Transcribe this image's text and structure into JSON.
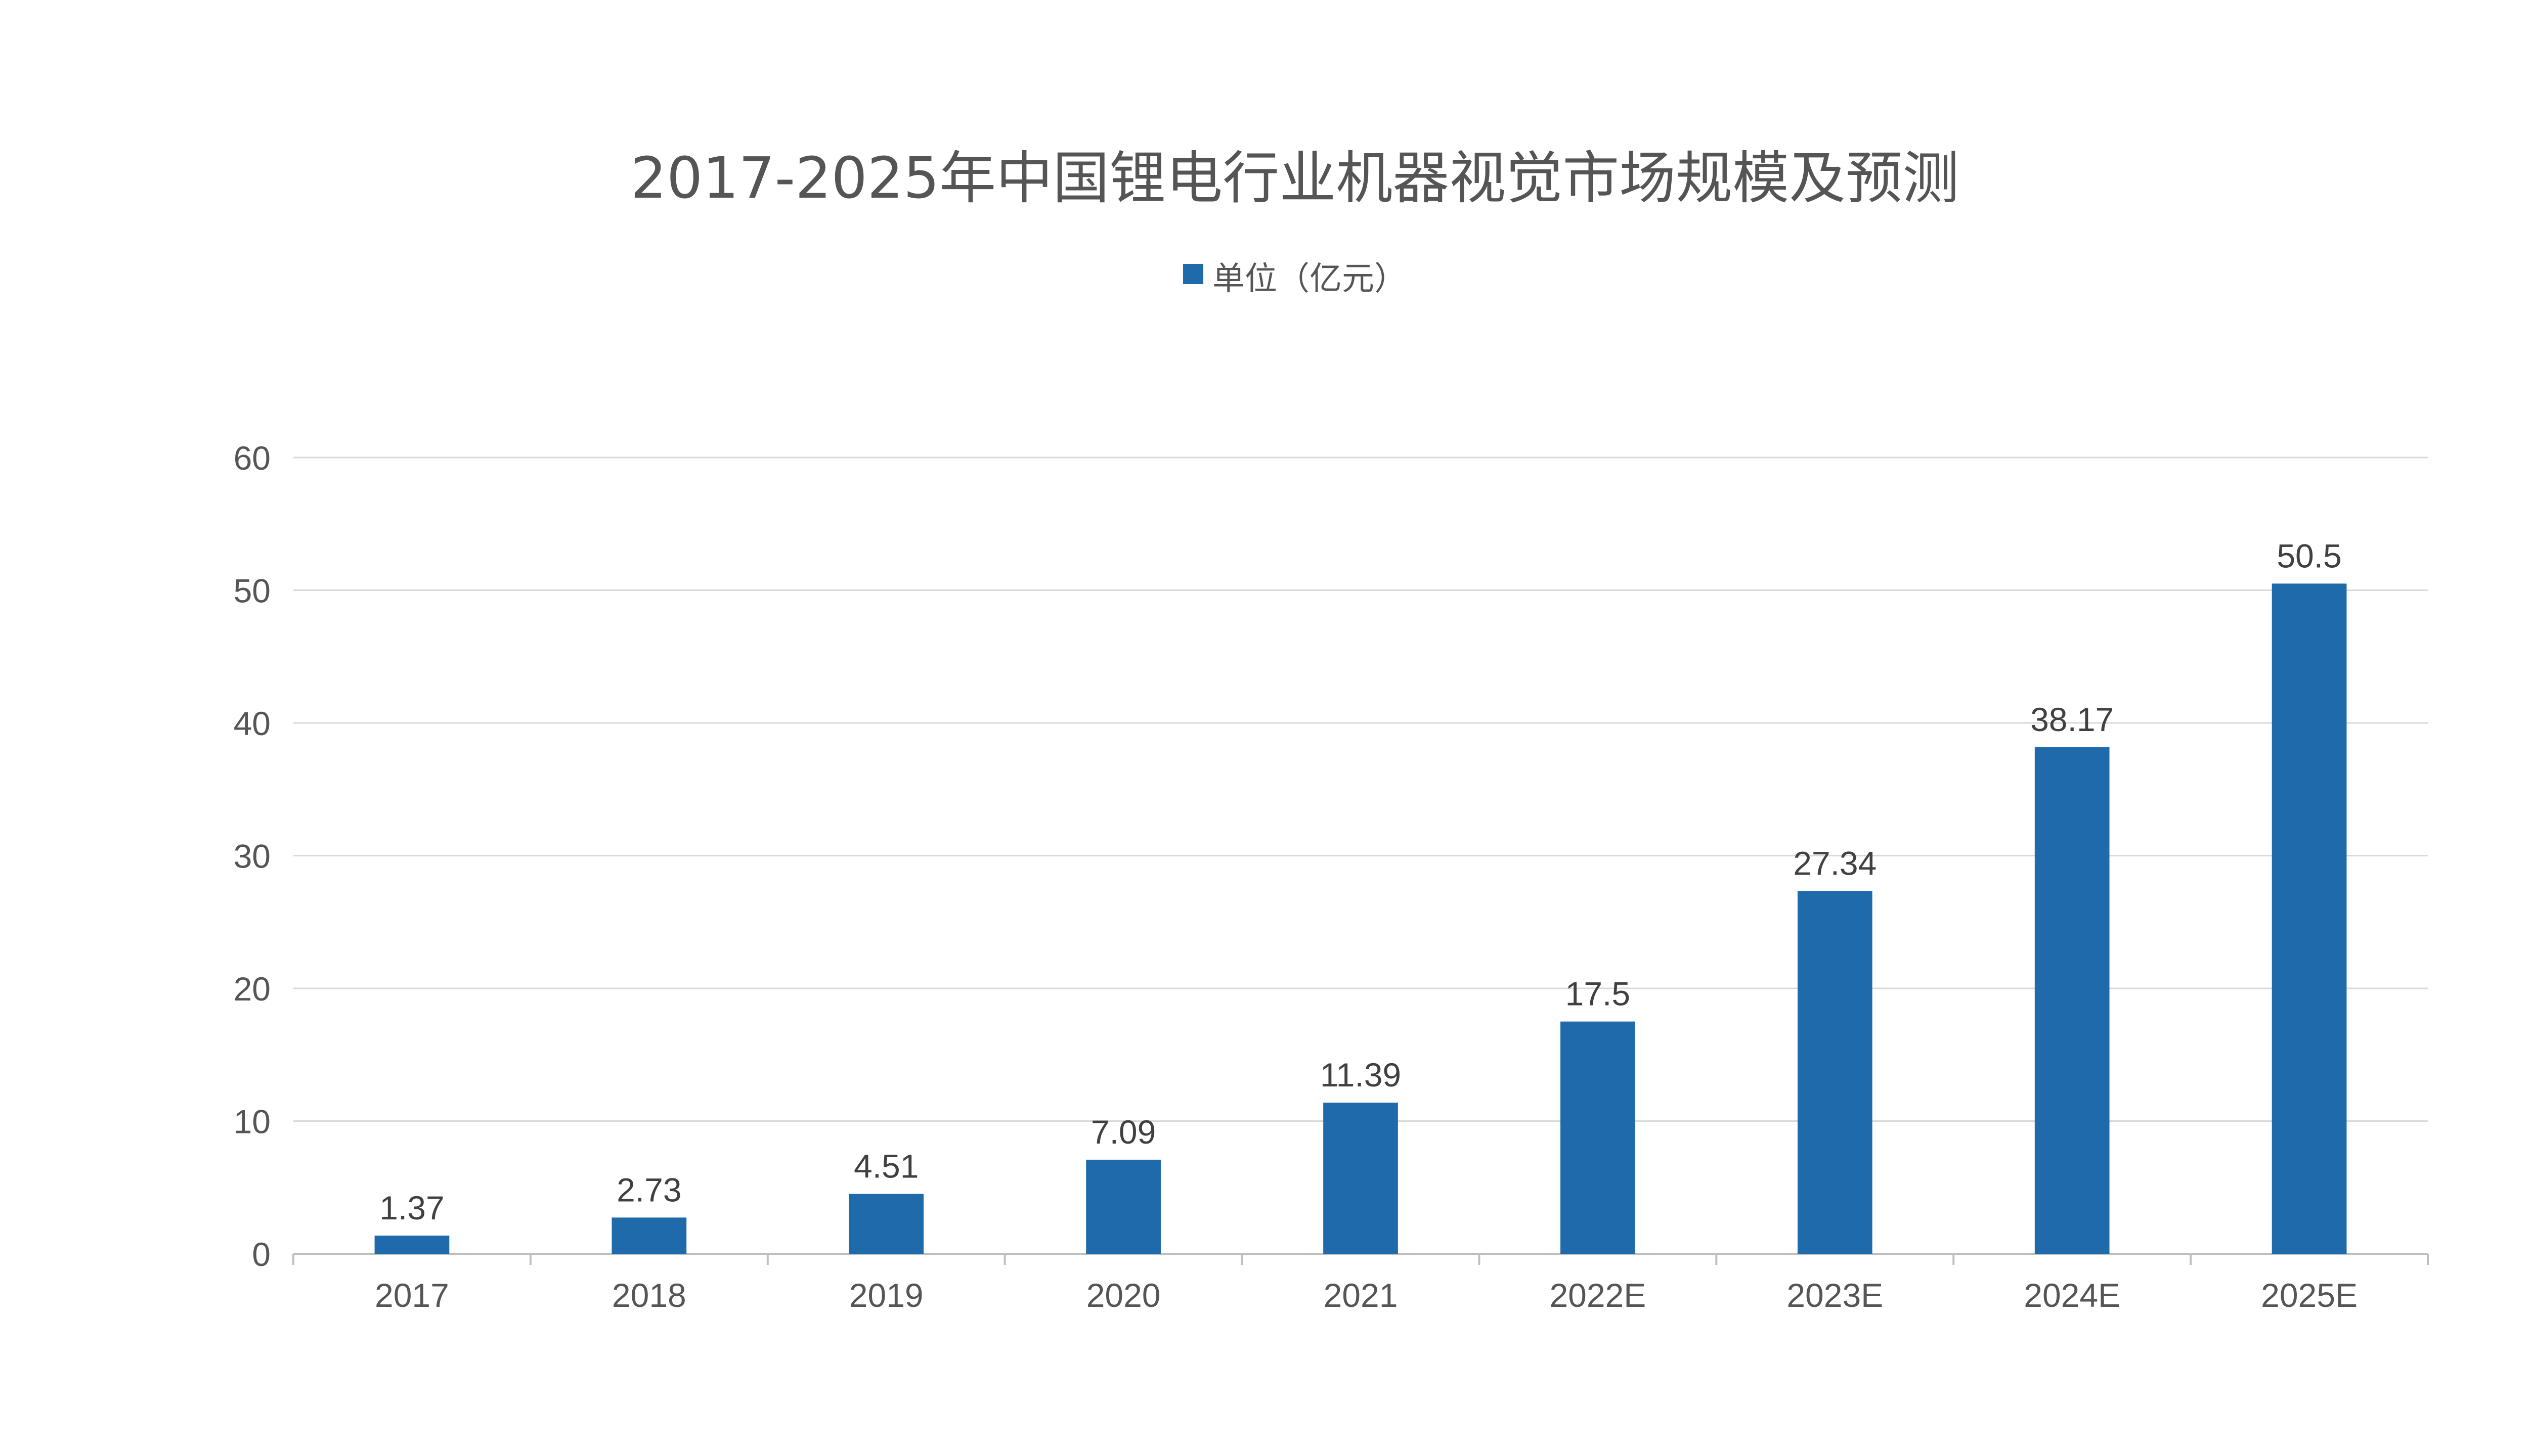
{
  "chart_data": {
    "type": "bar",
    "title": "2017-2025年中国锂电行业机器视觉市场规模及预测",
    "legend_position": "top-center",
    "grid": true,
    "categories": [
      "2017",
      "2018",
      "2019",
      "2020",
      "2021",
      "2022E",
      "2023E",
      "2024E",
      "2025E"
    ],
    "series": [
      {
        "name": "单位（亿元）",
        "color": "#1f6aab",
        "values": [
          1.37,
          2.73,
          4.51,
          7.09,
          11.39,
          17.5,
          27.34,
          38.17,
          50.5
        ],
        "labels": [
          "1.37",
          "2.73",
          "4.51",
          "7.09",
          "11.39",
          "17.5",
          "27.34",
          "38.17",
          "50.5"
        ]
      }
    ],
    "ylim": [
      0,
      60
    ],
    "yticks": [
      0,
      10,
      20,
      30,
      40,
      50,
      60
    ],
    "xlabel": "",
    "ylabel": ""
  },
  "colors": {
    "bar": "#1f6aab",
    "grid": "#d9d9d9",
    "axis": "#bfbfbf",
    "text": "#555555",
    "label": "#404040"
  }
}
